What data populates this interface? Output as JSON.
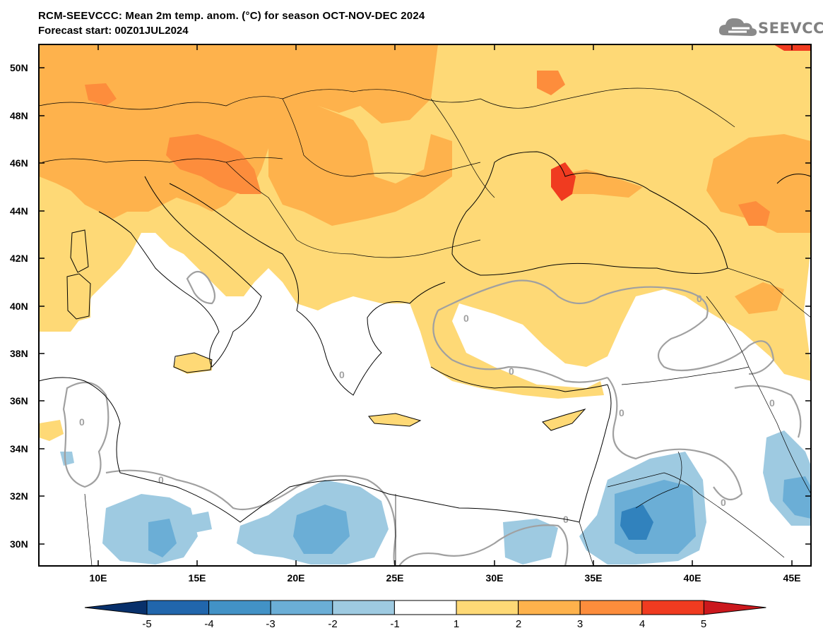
{
  "header": {
    "title": "RCM-SEEVCCC: Mean 2m temp. anom. (°C) for season OCT-NOV-DEC 2024",
    "subtitle": "Forecast start: 00Z01JUL2024",
    "logo_text": "SEEVCCC",
    "logo_icon": "cloud-icon"
  },
  "map": {
    "lat_ticks": [
      "50N",
      "48N",
      "46N",
      "44N",
      "42N",
      "40N",
      "38N",
      "36N",
      "34N",
      "32N",
      "30N"
    ],
    "lon_ticks": [
      "10E",
      "15E",
      "20E",
      "25E",
      "30E",
      "35E",
      "40E",
      "45E"
    ],
    "contour_label": "0",
    "colors": {
      "land_border": "#000000",
      "contour_zero": "#a0a0a0",
      "warm1": "#fed976",
      "warm2": "#feb24c",
      "warm3": "#fd8d3c",
      "warm4": "#f03b20",
      "cool1": "#9ecae1",
      "cool2": "#6baed6",
      "cool3": "#3182bd"
    }
  },
  "colorbar": {
    "labels": [
      "-5",
      "-4",
      "-3",
      "-2",
      "-1",
      "1",
      "2",
      "3",
      "4",
      "5"
    ],
    "colors": [
      "#08306b",
      "#2166ac",
      "#4292c6",
      "#6baed6",
      "#9ecae1",
      "#ffffff",
      "#fed976",
      "#feb24c",
      "#fd8d3c",
      "#f03b20",
      "#cb181d"
    ]
  }
}
